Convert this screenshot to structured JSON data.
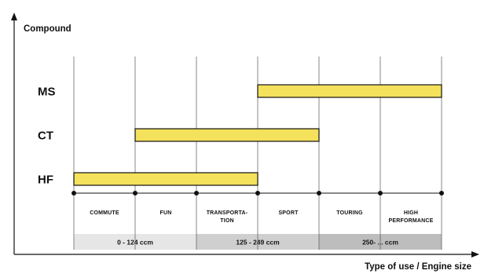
{
  "chart_data": {
    "type": "bar",
    "subtype": "range-gantt",
    "ylabel": "Compound",
    "xlabel": "Type of use / Engine size",
    "categories": [
      "MS",
      "CT",
      "HF"
    ],
    "uses": [
      {
        "lines": [
          "COMMUTE"
        ]
      },
      {
        "lines": [
          "FUN"
        ]
      },
      {
        "lines": [
          "TRANSPORTA-",
          "TION"
        ]
      },
      {
        "lines": [
          "SPORT"
        ]
      },
      {
        "lines": [
          "TOURING"
        ]
      },
      {
        "lines": [
          "HIGH",
          "PERFORMANCE"
        ]
      }
    ],
    "engine_ranges": [
      {
        "label": "0 - 124 ccm",
        "start": 0,
        "end": 2,
        "color": "#e6e6e6"
      },
      {
        "label": "125 - 249 ccm",
        "start": 2,
        "end": 4,
        "color": "#cfcfcf"
      },
      {
        "label": "250- ... ccm",
        "start": 4,
        "end": 6,
        "color": "#bdbdbd"
      }
    ],
    "series": [
      {
        "category": "MS",
        "start": 3,
        "end": 6
      },
      {
        "category": "CT",
        "start": 1,
        "end": 4
      },
      {
        "category": "HF",
        "start": 0,
        "end": 3
      }
    ],
    "bar_color": "#f4e15c",
    "grid": true
  }
}
